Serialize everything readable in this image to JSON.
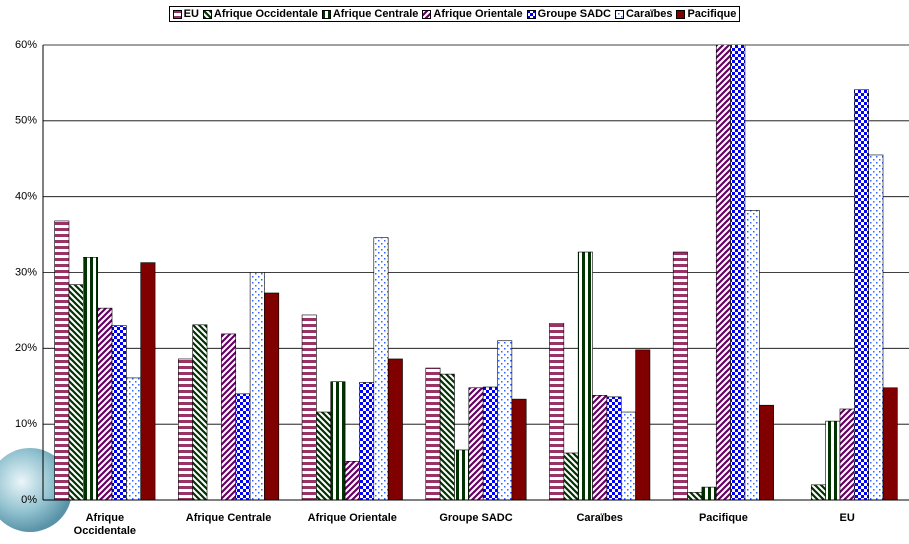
{
  "chart_data": {
    "type": "bar",
    "categories": [
      "Afrique Occidentale",
      "Afrique Centrale",
      "Afrique Orientale",
      "Groupe SADC",
      "Caraïbes",
      "Pacifique",
      "EU"
    ],
    "series": [
      {
        "name": "EU",
        "color": "#993366",
        "values": [
          36.8,
          18.6,
          24.4,
          17.4,
          23.3,
          32.7,
          0
        ]
      },
      {
        "name": "Afrique Occidentale",
        "color": "#003300",
        "values": [
          28.4,
          23.1,
          11.6,
          16.6,
          6.2,
          1,
          2
        ]
      },
      {
        "name": "Afrique Centrale",
        "color": "#003300",
        "values": [
          32,
          0,
          15.6,
          6.6,
          32.7,
          1.7,
          10.4
        ]
      },
      {
        "name": "Afrique Orientale",
        "color": "#660066",
        "values": [
          25.3,
          21.9,
          5.1,
          14.8,
          13.8,
          64,
          12
        ]
      },
      {
        "name": "Groupe SADC",
        "color": "#0000ff",
        "values": [
          23,
          14,
          15.5,
          14.9,
          13.6,
          62,
          54.1
        ]
      },
      {
        "name": "Caraïbes",
        "color": "#3366ff",
        "values": [
          16.1,
          30,
          34.6,
          21,
          11.6,
          38.2,
          45.5
        ]
      },
      {
        "name": "Pacifique",
        "color": "#800000",
        "values": [
          31.3,
          27.3,
          18.6,
          13.3,
          19.8,
          12.5,
          14.8
        ]
      }
    ],
    "ylim": [
      0,
      60
    ],
    "yticks": [
      {
        "value": 0,
        "label": "0%"
      },
      {
        "value": 10,
        "label": "10%"
      },
      {
        "value": 20,
        "label": "20%"
      },
      {
        "value": 30,
        "label": "30%"
      },
      {
        "value": 40,
        "label": "40%"
      },
      {
        "value": 50,
        "label": "50%"
      },
      {
        "value": 60,
        "label": "60%"
      }
    ],
    "grid": true
  }
}
